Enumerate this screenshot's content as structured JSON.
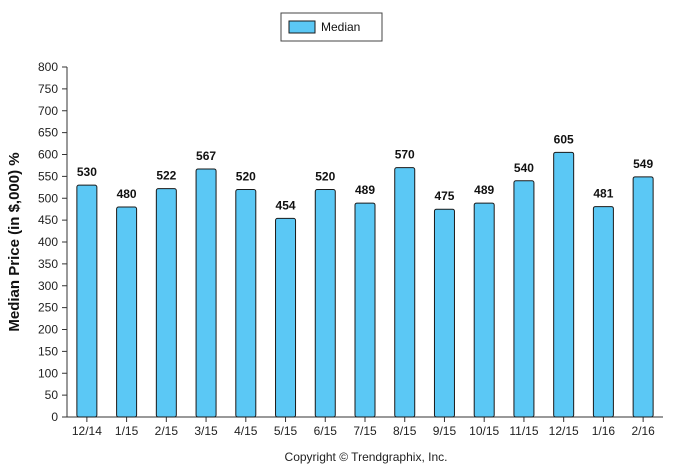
{
  "chart_data": {
    "type": "bar",
    "categories": [
      "12/14",
      "1/15",
      "2/15",
      "3/15",
      "4/15",
      "5/15",
      "6/15",
      "7/15",
      "8/15",
      "9/15",
      "10/15",
      "11/15",
      "12/15",
      "1/16",
      "2/16"
    ],
    "series": [
      {
        "name": "Median",
        "values": [
          530,
          480,
          522,
          567,
          520,
          454,
          520,
          489,
          570,
          475,
          489,
          540,
          605,
          481,
          549
        ]
      }
    ],
    "data_labels": [
      "530",
      "480",
      "522",
      "567",
      "520",
      "454",
      "520",
      "489",
      "570",
      "475",
      "489",
      "540",
      "605",
      "481",
      "549"
    ],
    "ylabel": "Median Price (in $,000) %",
    "xlabel": "",
    "ylim": [
      0,
      800
    ],
    "yticks": [
      0,
      50,
      100,
      150,
      200,
      250,
      300,
      350,
      400,
      450,
      500,
      550,
      600,
      650,
      700,
      750,
      800
    ],
    "ytick_labels": [
      "0",
      "50",
      "100",
      "150",
      "200",
      "250",
      "300",
      "350",
      "400",
      "450",
      "500",
      "550",
      "600",
      "650",
      "700",
      "750",
      "800"
    ],
    "grid": false,
    "legend_position": "top-center",
    "colors": {
      "bar_fill": "#5bc8f5",
      "bar_stroke": "#1a1a1a",
      "axis": "#333333"
    }
  },
  "footer": {
    "copyright": "Copyright © Trendgraphix, Inc."
  }
}
